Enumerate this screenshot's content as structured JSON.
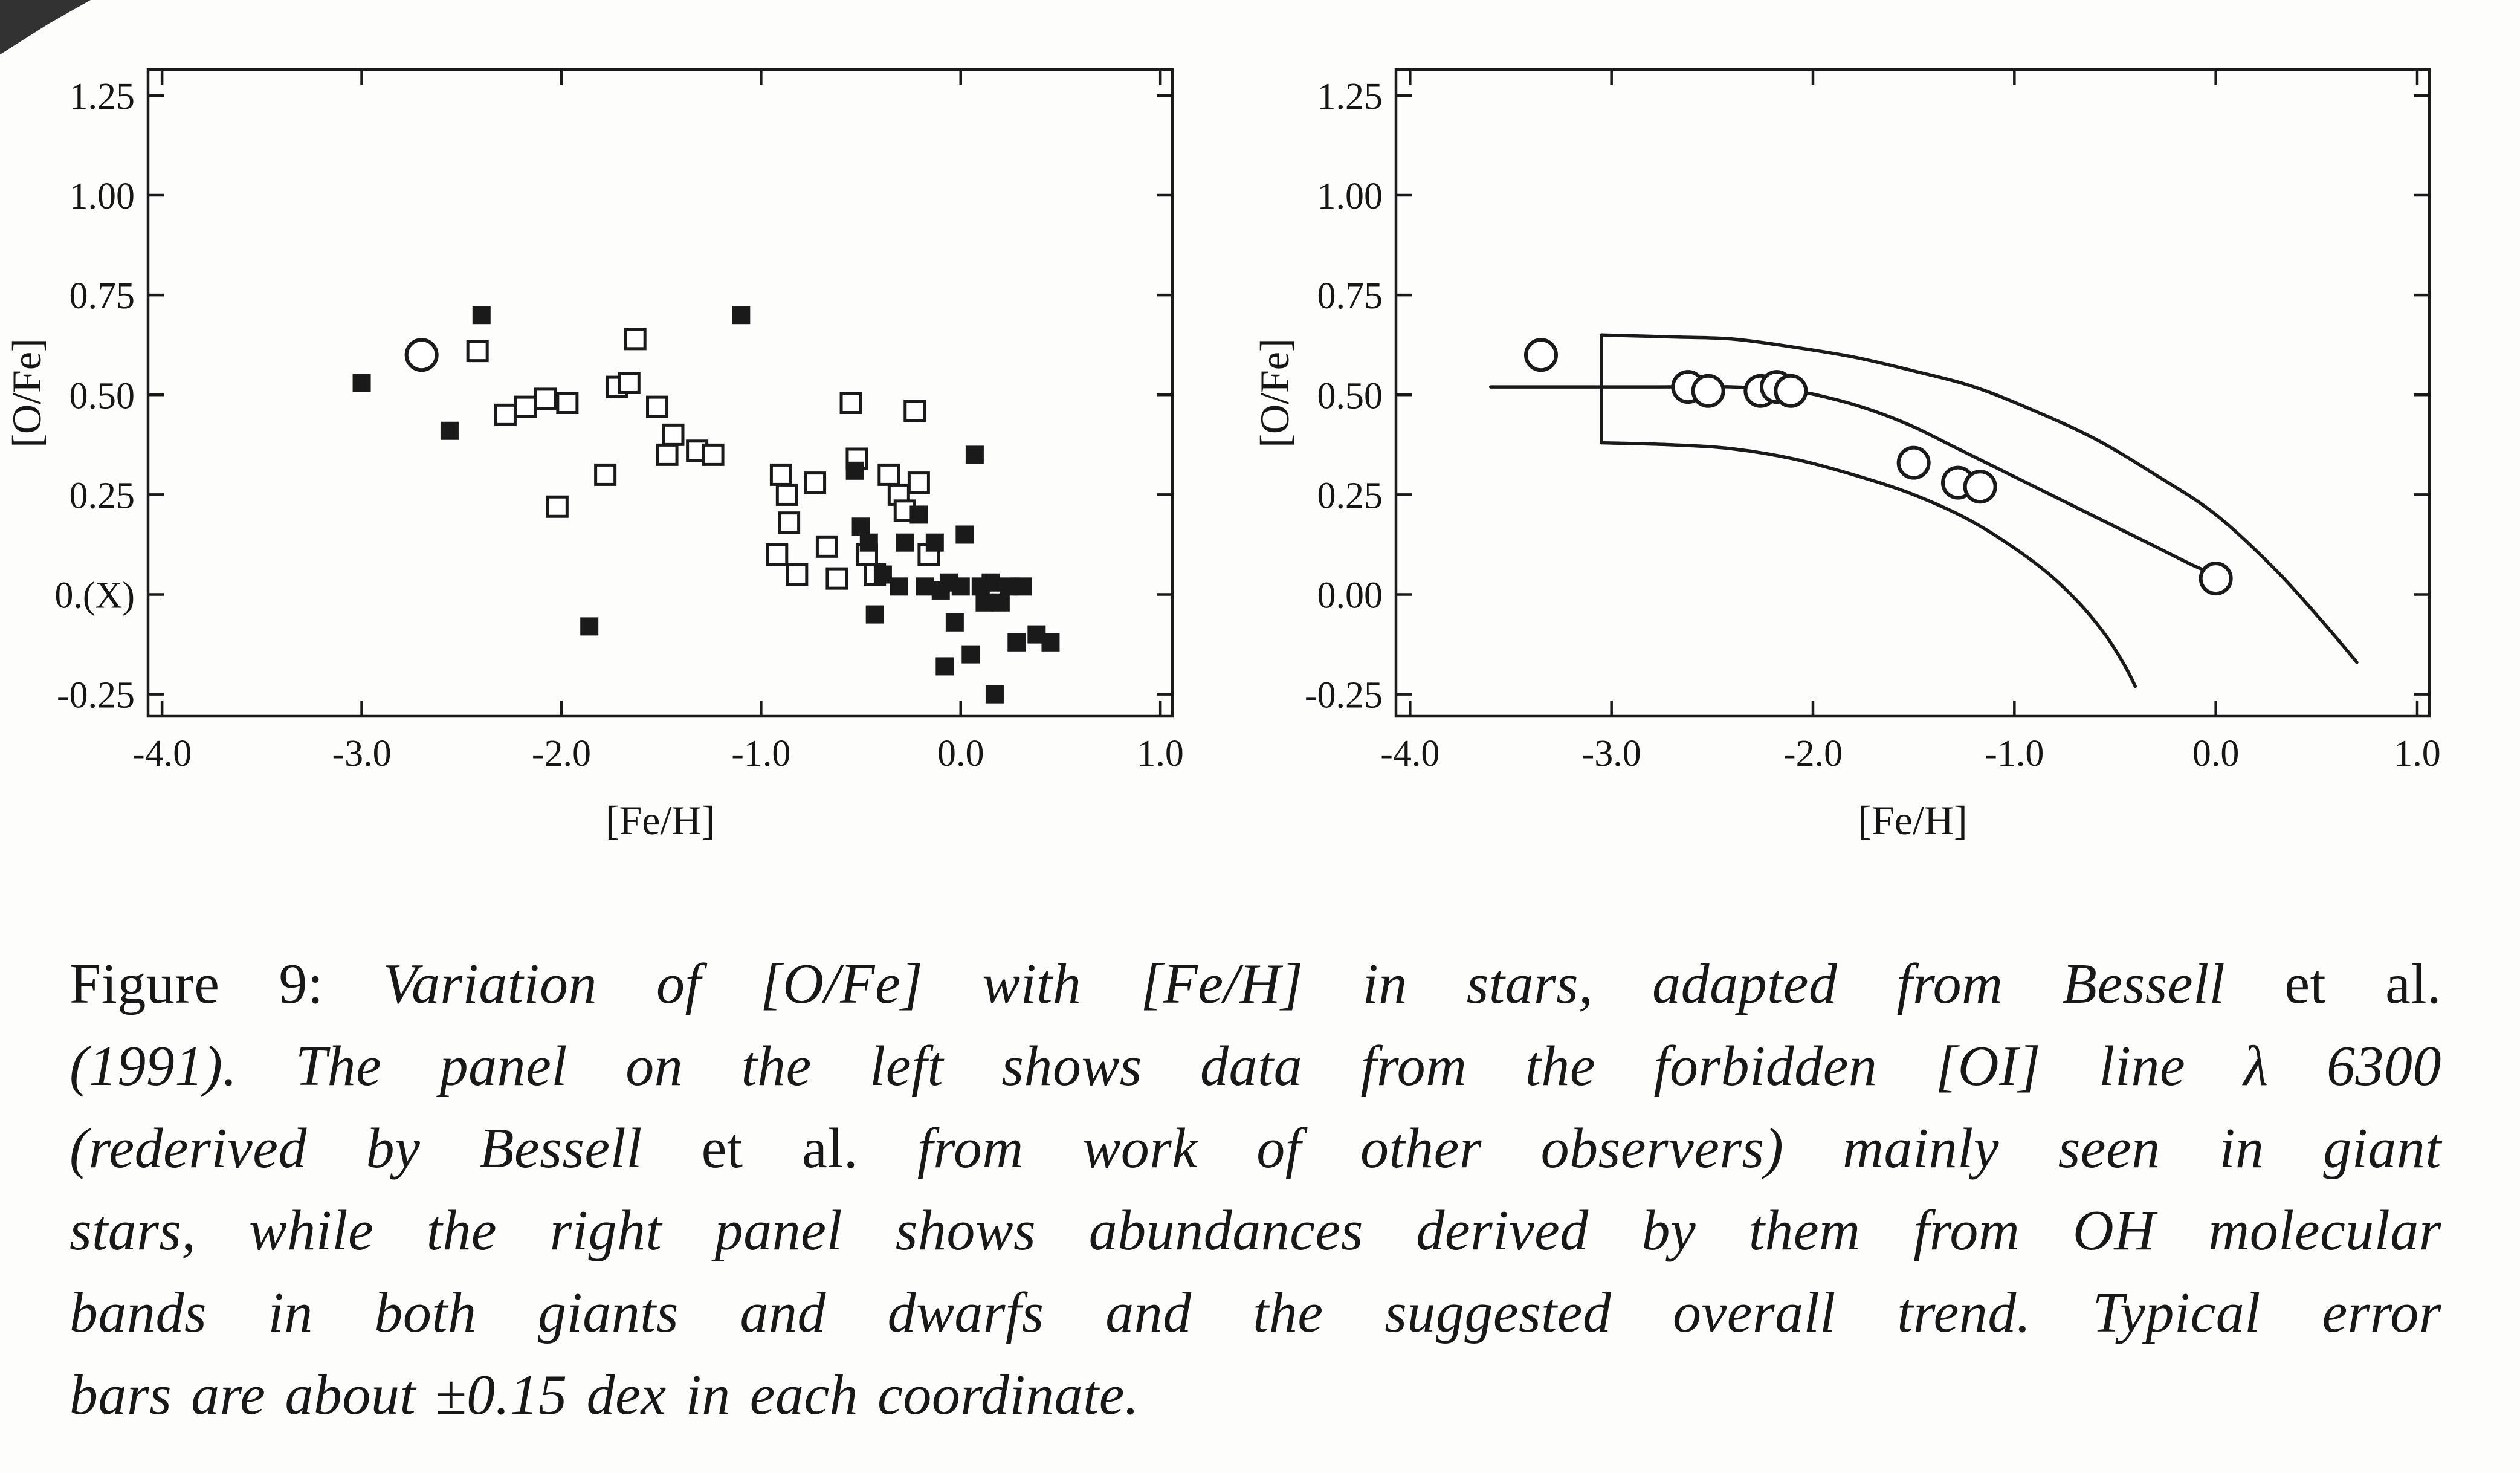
{
  "figure": {
    "ink_color": "#1a1a1a",
    "caption": {
      "lines": [
        [
          {
            "t": "Figure 9:  ",
            "s": "roman"
          },
          {
            "t": "Variation of [O/Fe] with [Fe/H] in stars, adapted from Bessell ",
            "s": "italic"
          },
          {
            "t": "et al.",
            "s": "roman"
          }
        ],
        [
          {
            "t": "(1991).  The panel on the left shows data from the forbidden [OI] line λ 6300",
            "s": "italic"
          }
        ],
        [
          {
            "t": "(rederived by Bessell ",
            "s": "italic"
          },
          {
            "t": "et al.",
            "s": "roman"
          },
          {
            "t": "  from work of other observers) mainly seen in giant",
            "s": "italic"
          }
        ],
        [
          {
            "t": "stars, while the right panel shows abundances derived by them from OH molecular",
            "s": "italic"
          }
        ],
        [
          {
            "t": "bands in both giants and dwarfs and the suggested overall trend.  Typical error",
            "s": "italic"
          }
        ],
        [
          {
            "t": "bars are about ±0.15 dex in each coordinate.",
            "s": "italic"
          }
        ]
      ]
    }
  },
  "chart_data": [
    {
      "type": "scatter",
      "panel": "left",
      "title": "",
      "xlabel": "[Fe/H]",
      "ylabel": "[O/Fe]",
      "xlim": [
        -4.0,
        1.0
      ],
      "ylim": [
        -0.25,
        1.25
      ],
      "grid": false,
      "x_tick_values": [
        -4.0,
        -3.0,
        -2.0,
        -1.0,
        0.0,
        1.0
      ],
      "x_tick_labels": [
        "-4.0",
        "-3.0",
        "-2.0",
        "-1.0",
        "0.0",
        "1.0"
      ],
      "y_tick_values": [
        -0.25,
        0.0,
        0.25,
        0.5,
        0.75,
        1.0,
        1.25
      ],
      "y_tick_labels": [
        "-0.25",
        "0.(X)",
        "0.25",
        "0.50",
        "0.75",
        "1.00",
        "1.25"
      ],
      "series": [
        {
          "name": "oi-line-giants-open-squares",
          "marker": "open-square",
          "points": [
            [
              -2.42,
              0.61
            ],
            [
              -2.28,
              0.45
            ],
            [
              -2.18,
              0.47
            ],
            [
              -2.08,
              0.49
            ],
            [
              -1.97,
              0.48
            ],
            [
              -2.02,
              0.22
            ],
            [
              -1.78,
              0.3
            ],
            [
              -1.72,
              0.52
            ],
            [
              -1.66,
              0.53
            ],
            [
              -1.63,
              0.64
            ],
            [
              -1.52,
              0.47
            ],
            [
              -1.47,
              0.35
            ],
            [
              -1.44,
              0.4
            ],
            [
              -1.32,
              0.36
            ],
            [
              -1.24,
              0.35
            ],
            [
              -0.9,
              0.3
            ],
            [
              -0.87,
              0.25
            ],
            [
              -0.86,
              0.18
            ],
            [
              -0.92,
              0.1
            ],
            [
              -0.82,
              0.05
            ],
            [
              -0.73,
              0.28
            ],
            [
              -0.67,
              0.12
            ],
            [
              -0.62,
              0.04
            ],
            [
              -0.55,
              0.48
            ],
            [
              -0.52,
              0.34
            ],
            [
              -0.47,
              0.1
            ],
            [
              -0.43,
              0.05
            ],
            [
              -0.36,
              0.3
            ],
            [
              -0.31,
              0.25
            ],
            [
              -0.28,
              0.21
            ],
            [
              -0.23,
              0.46
            ],
            [
              -0.21,
              0.28
            ],
            [
              -0.16,
              0.1
            ]
          ]
        },
        {
          "name": "oi-line-filled-squares",
          "marker": "filled-square",
          "points": [
            [
              -3.0,
              0.53
            ],
            [
              -2.56,
              0.41
            ],
            [
              -2.4,
              0.7
            ],
            [
              -1.86,
              -0.08
            ],
            [
              -1.1,
              0.7
            ],
            [
              -0.53,
              0.31
            ],
            [
              -0.5,
              0.17
            ],
            [
              -0.46,
              0.13
            ],
            [
              -0.43,
              -0.05
            ],
            [
              -0.39,
              0.05
            ],
            [
              -0.31,
              0.02
            ],
            [
              -0.28,
              0.13
            ],
            [
              -0.21,
              0.2
            ],
            [
              -0.18,
              0.02
            ],
            [
              -0.13,
              0.13
            ],
            [
              -0.1,
              0.01
            ],
            [
              -0.08,
              -0.18
            ],
            [
              -0.06,
              0.03
            ],
            [
              -0.03,
              -0.07
            ],
            [
              0.0,
              0.02
            ],
            [
              0.02,
              0.15
            ],
            [
              0.05,
              -0.15
            ],
            [
              0.07,
              0.35
            ],
            [
              0.1,
              0.02
            ],
            [
              0.12,
              -0.02
            ],
            [
              0.15,
              0.03
            ],
            [
              0.17,
              -0.25
            ],
            [
              0.2,
              -0.02
            ],
            [
              0.24,
              0.02
            ],
            [
              0.28,
              -0.12
            ],
            [
              0.31,
              0.02
            ],
            [
              0.38,
              -0.1
            ],
            [
              0.45,
              -0.12
            ]
          ]
        },
        {
          "name": "oi-line-open-circle",
          "marker": "open-circle",
          "points": [
            [
              -2.7,
              0.6
            ]
          ]
        }
      ]
    },
    {
      "type": "scatter",
      "panel": "right",
      "title": "",
      "xlabel": "[Fe/H]",
      "ylabel": "[O/Fe]",
      "xlim": [
        -4.0,
        1.0
      ],
      "ylim": [
        -0.25,
        1.25
      ],
      "grid": false,
      "x_tick_values": [
        -4.0,
        -3.0,
        -2.0,
        -1.0,
        0.0,
        1.0
      ],
      "x_tick_labels": [
        "-4.0",
        "-3.0",
        "-2.0",
        "-1.0",
        "0.0",
        "1.0"
      ],
      "y_tick_values": [
        -0.25,
        0.0,
        0.25,
        0.5,
        0.75,
        1.0,
        1.25
      ],
      "y_tick_labels": [
        "-0.25",
        "0.00",
        "0.25",
        "0.50",
        "0.75",
        "1.00",
        "1.25"
      ],
      "series": [
        {
          "name": "oh-bands-open-circles",
          "marker": "open-circle",
          "points": [
            [
              -3.35,
              0.6
            ],
            [
              -2.62,
              0.52
            ],
            [
              -2.52,
              0.51
            ],
            [
              -2.26,
              0.51
            ],
            [
              -2.18,
              0.52
            ],
            [
              -2.11,
              0.51
            ],
            [
              -1.5,
              0.33
            ],
            [
              -1.28,
              0.28
            ],
            [
              -1.17,
              0.27
            ],
            [
              0.0,
              0.04
            ]
          ]
        }
      ],
      "curves": [
        {
          "name": "mean-trend-curve",
          "points": [
            [
              -3.6,
              0.52
            ],
            [
              -3.2,
              0.52
            ],
            [
              -2.8,
              0.52
            ],
            [
              -2.4,
              0.52
            ],
            [
              -2.1,
              0.51
            ],
            [
              -1.9,
              0.49
            ],
            [
              -1.7,
              0.46
            ],
            [
              -1.5,
              0.42
            ],
            [
              -1.3,
              0.37
            ],
            [
              -1.1,
              0.32
            ],
            [
              -0.9,
              0.27
            ],
            [
              -0.7,
              0.22
            ],
            [
              -0.5,
              0.17
            ],
            [
              -0.3,
              0.12
            ],
            [
              -0.1,
              0.07
            ],
            [
              0.0,
              0.05
            ]
          ]
        },
        {
          "name": "upper-envelope-curve",
          "points": [
            [
              -3.05,
              0.65
            ],
            [
              -2.7,
              0.645
            ],
            [
              -2.4,
              0.64
            ],
            [
              -2.1,
              0.62
            ],
            [
              -1.8,
              0.595
            ],
            [
              -1.5,
              0.56
            ],
            [
              -1.2,
              0.52
            ],
            [
              -0.9,
              0.46
            ],
            [
              -0.6,
              0.39
            ],
            [
              -0.3,
              0.3
            ],
            [
              0.0,
              0.2
            ],
            [
              0.3,
              0.06
            ],
            [
              0.55,
              -0.08
            ],
            [
              0.7,
              -0.17
            ]
          ]
        },
        {
          "name": "lower-envelope-curve",
          "points": [
            [
              -3.05,
              0.38
            ],
            [
              -2.7,
              0.375
            ],
            [
              -2.4,
              0.365
            ],
            [
              -2.1,
              0.34
            ],
            [
              -1.8,
              0.3
            ],
            [
              -1.5,
              0.25
            ],
            [
              -1.2,
              0.18
            ],
            [
              -0.9,
              0.08
            ],
            [
              -0.7,
              -0.01
            ],
            [
              -0.55,
              -0.1
            ],
            [
              -0.45,
              -0.18
            ],
            [
              -0.4,
              -0.23
            ]
          ]
        },
        {
          "name": "envelope-left-cap",
          "points": [
            [
              -3.05,
              0.38
            ],
            [
              -3.05,
              0.65
            ]
          ]
        }
      ]
    }
  ]
}
